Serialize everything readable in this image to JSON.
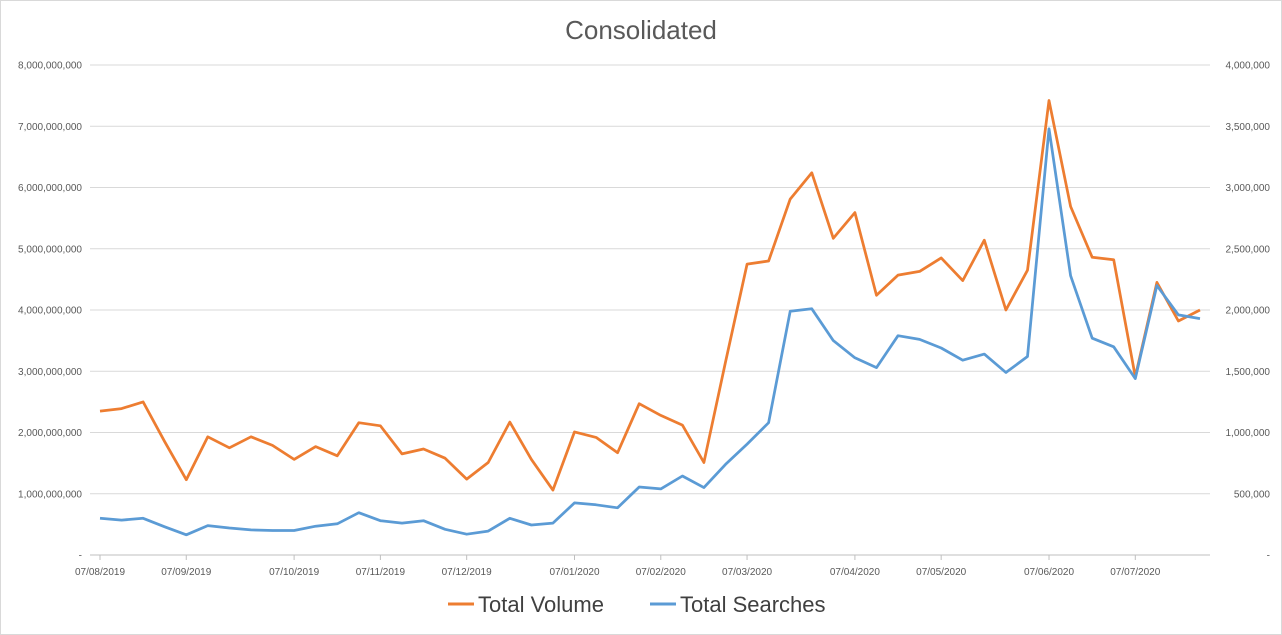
{
  "chart_data": {
    "type": "line",
    "title": "Consolidated",
    "xlabel": "",
    "ylabel": "",
    "x_tick_labels": [
      "07/08/2019",
      "07/09/2019",
      "07/10/2019",
      "07/11/2019",
      "07/12/2019",
      "07/01/2020",
      "07/02/2020",
      "07/03/2020",
      "07/04/2020",
      "07/05/2020",
      "07/06/2020",
      "07/07/2020"
    ],
    "y_left": {
      "lim": [
        0,
        8000000000
      ],
      "tick_labels": [
        "-",
        "1,000,000,000",
        "2,000,000,000",
        "3,000,000,000",
        "4,000,000,000",
        "5,000,000,000",
        "6,000,000,000",
        "7,000,000,000",
        "8,000,000,000"
      ]
    },
    "y_right": {
      "lim": [
        0,
        4000000
      ],
      "tick_labels": [
        "-",
        "500,000",
        "1,000,000",
        "1,500,000",
        "2,000,000",
        "2,500,000",
        "3,000,000",
        "3,500,000",
        "4,000,000"
      ]
    },
    "grid": true,
    "legend_position": "bottom",
    "series": [
      {
        "name": "Total Volume",
        "axis": "left",
        "color": "#ED7D31",
        "values": [
          2350000000,
          2390000000,
          2500000000,
          1850000000,
          1230000000,
          1930000000,
          1750000000,
          1930000000,
          1790000000,
          1560000000,
          1770000000,
          1620000000,
          2160000000,
          2110000000,
          1650000000,
          1730000000,
          1580000000,
          1240000000,
          1510000000,
          2170000000,
          1560000000,
          1060000000,
          2010000000,
          1920000000,
          1670000000,
          2470000000,
          2280000000,
          2120000000,
          1510000000,
          3150000000,
          4750000000,
          4800000000,
          5810000000,
          6240000000,
          5170000000,
          5590000000,
          4240000000,
          4570000000,
          4630000000,
          4850000000,
          4480000000,
          5140000000,
          4000000000,
          4650000000,
          7420000000,
          5690000000,
          4860000000,
          4820000000,
          2910000000,
          4450000000,
          3820000000,
          4000000000
        ]
      },
      {
        "name": "Total Searches",
        "axis": "right",
        "color": "#5B9BD5",
        "values": [
          300000,
          285000,
          300000,
          230000,
          165000,
          240000,
          220000,
          205000,
          200000,
          200000,
          235000,
          255000,
          345000,
          280000,
          260000,
          280000,
          210000,
          170000,
          195000,
          300000,
          245000,
          260000,
          425000,
          410000,
          385000,
          555000,
          540000,
          645000,
          550000,
          740000,
          905000,
          1080000,
          1990000,
          2010000,
          1750000,
          1610000,
          1530000,
          1790000,
          1760000,
          1690000,
          1590000,
          1640000,
          1490000,
          1620000,
          3480000,
          2280000,
          1770000,
          1700000,
          1440000,
          2200000,
          1960000,
          1930000
        ]
      }
    ]
  }
}
